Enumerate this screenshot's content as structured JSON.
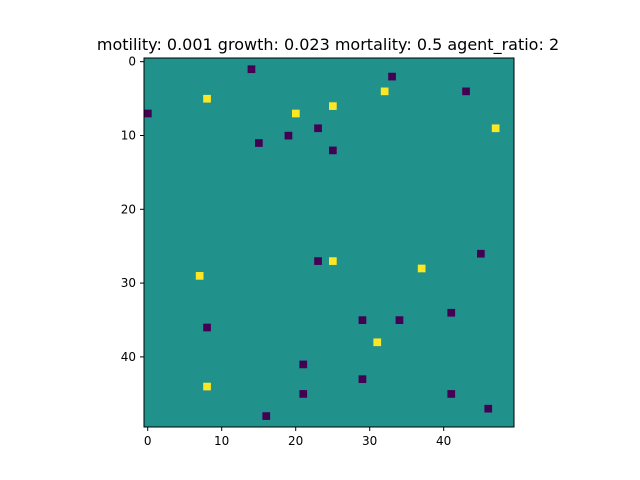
{
  "chart_data": {
    "type": "heatmap",
    "title": "motility: 0.001 growth: 0.023 mortality: 0.5 agent_ratio: 2",
    "xlabel": "",
    "ylabel": "",
    "grid_size": [
      50,
      50
    ],
    "xlim": [
      -0.5,
      49.5
    ],
    "ylim": [
      49.5,
      -0.5
    ],
    "x_ticks": [
      0,
      10,
      20,
      30,
      40
    ],
    "y_ticks": [
      0,
      10,
      20,
      30,
      40
    ],
    "grid": false,
    "colors": {
      "background": "#21918c",
      "type_a": "#440154",
      "type_b": "#fde725"
    },
    "type_a_cells": [
      [
        14,
        1
      ],
      [
        33,
        2
      ],
      [
        43,
        4
      ],
      [
        0,
        7
      ],
      [
        23,
        9
      ],
      [
        19,
        10
      ],
      [
        15,
        11
      ],
      [
        25,
        12
      ],
      [
        45,
        26
      ],
      [
        23,
        27
      ],
      [
        41,
        34
      ],
      [
        29,
        35
      ],
      [
        34,
        35
      ],
      [
        8,
        36
      ],
      [
        21,
        41
      ],
      [
        29,
        43
      ],
      [
        21,
        45
      ],
      [
        41,
        45
      ],
      [
        46,
        47
      ],
      [
        16,
        48
      ]
    ],
    "type_b_cells": [
      [
        32,
        4
      ],
      [
        8,
        5
      ],
      [
        25,
        6
      ],
      [
        20,
        7
      ],
      [
        47,
        9
      ],
      [
        25,
        27
      ],
      [
        37,
        28
      ],
      [
        7,
        29
      ],
      [
        31,
        38
      ],
      [
        8,
        44
      ]
    ]
  }
}
